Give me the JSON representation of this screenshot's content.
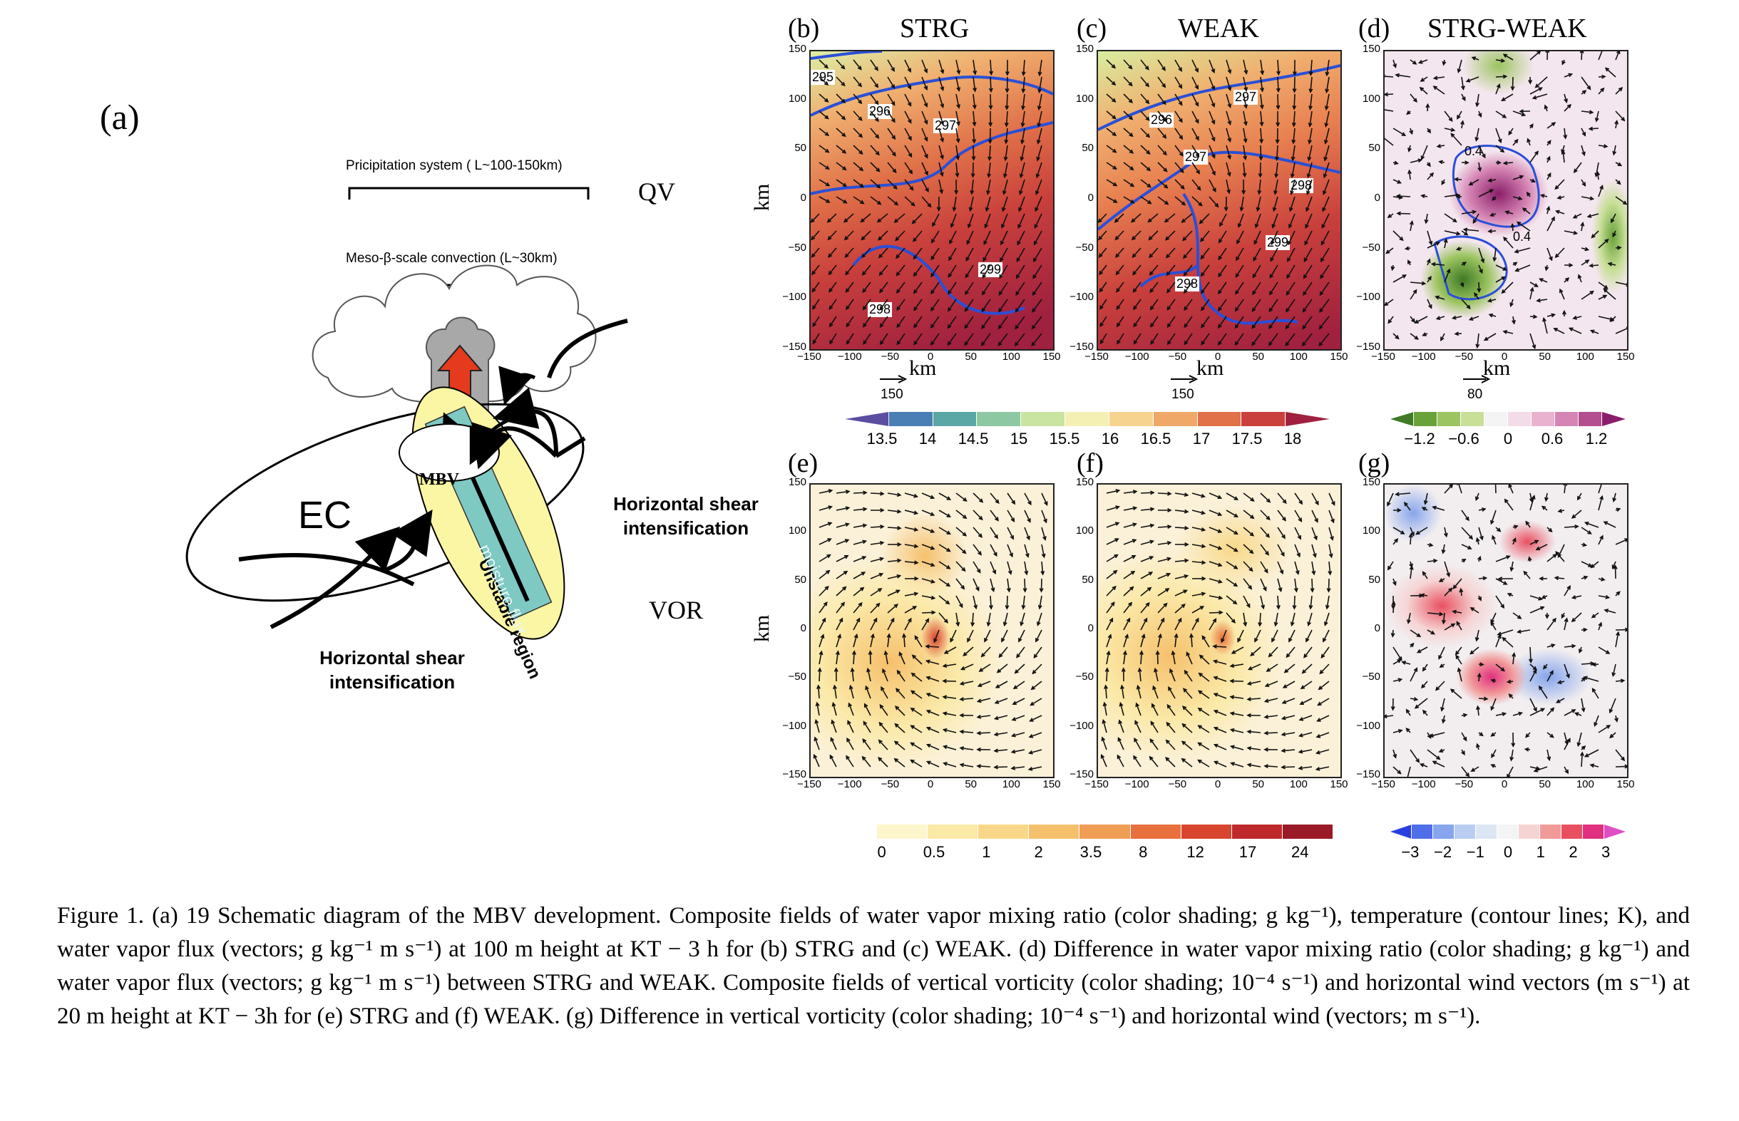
{
  "panel_labels": {
    "a": "(a)",
    "b": "(b)",
    "c": "(c)",
    "d": "(d)",
    "e": "(e)",
    "f": "(f)",
    "g": "(g)"
  },
  "panel_titles": {
    "b": "STRG",
    "c": "WEAK",
    "d": "STRG-WEAK"
  },
  "schematic": {
    "precip_label": "Pricipitation system ( L~100-150km)",
    "meso_label": "Meso-β-scale convection (L~30km)",
    "qv": "QV",
    "vor": "VOR",
    "ec": "EC",
    "mbv": "MBV",
    "unstable": "Unstable region",
    "moisture": "moisture flux",
    "shear_right_1": "Horizontal shear",
    "shear_right_2": "intensification",
    "shear_bottom_1": "Horizontal shear",
    "shear_bottom_2": "intensification"
  },
  "axes": {
    "ticks": [
      "150",
      "100",
      "50",
      "0",
      "−50",
      "−100",
      "−150"
    ],
    "xticks": [
      "−150",
      "−100",
      "−50",
      "0",
      "50",
      "100",
      "150"
    ],
    "unit": "km"
  },
  "contours": {
    "b": [
      "295",
      "296",
      "297",
      "299",
      "298"
    ],
    "c": [
      "296",
      "297",
      "297",
      "298",
      "299",
      "298"
    ],
    "d": [
      "0.4",
      "0.4"
    ]
  },
  "reference_vectors": {
    "b": "150",
    "c": "150",
    "d": "80"
  },
  "colorbars": {
    "qv": {
      "labels": [
        "13.5",
        "14",
        "14.5",
        "15",
        "15.5",
        "16",
        "16.5",
        "17",
        "17.5",
        "18"
      ],
      "colors": [
        "#5b4ea0",
        "#4a7fb5",
        "#5aa7a5",
        "#8cc9a3",
        "#c8e4a0",
        "#f4f0b4",
        "#f6d38e",
        "#f0a868",
        "#e07148",
        "#c9403c",
        "#a0203f"
      ]
    },
    "dqv": {
      "labels": [
        "−1.2",
        "−0.6",
        "0",
        "0.6",
        "1.2"
      ],
      "colors": [
        "#3f7a26",
        "#6aa23a",
        "#9cc460",
        "#c8df98",
        "#f4f4f4",
        "#f4dbe8",
        "#e9b3d0",
        "#d585b4",
        "#b34f8f",
        "#8b1e6a"
      ]
    },
    "vor": {
      "labels": [
        "0",
        "0.5",
        "1",
        "2",
        "3.5",
        "8",
        "12",
        "17",
        "24"
      ],
      "colors": [
        "#fdf6cc",
        "#fbe9a8",
        "#f8d888",
        "#f5c06c",
        "#f09e55",
        "#e8703c",
        "#d8452f",
        "#be2a2c",
        "#9a1a28"
      ]
    },
    "dvor": {
      "labels": [
        "−3",
        "−2",
        "−1",
        "0",
        "1",
        "2",
        "3"
      ],
      "colors": [
        "#2a3fe0",
        "#4f6ee8",
        "#86a5ec",
        "#b8cdf0",
        "#dce6f2",
        "#f4f4f4",
        "#f6d4d4",
        "#f29a9a",
        "#e85060",
        "#e0307f",
        "#e04ec4"
      ]
    }
  },
  "caption": "Figure 1. (a) 19 Schematic diagram of the MBV development. Composite fields of water vapor mixing ratio (color shading; g kg⁻¹), temperature (contour lines; K), and water vapor flux (vectors; g kg⁻¹ m s⁻¹) at 100 m height at KT − 3 h for (b) STRG and (c) WEAK. (d) Difference in water vapor mixing ratio (color shading; g kg⁻¹) and water vapor flux (vectors; g kg⁻¹ m s⁻¹) between STRG and WEAK. Composite fields of vertical vorticity (color shading; 10⁻⁴ s⁻¹) and horizontal wind vectors (m s⁻¹) at 20 m height at KT − 3h for (e) STRG and (f) WEAK. (g) Difference in vertical vorticity (color shading; 10⁻⁴ s⁻¹) and horizontal wind (vectors; m s⁻¹)."
}
